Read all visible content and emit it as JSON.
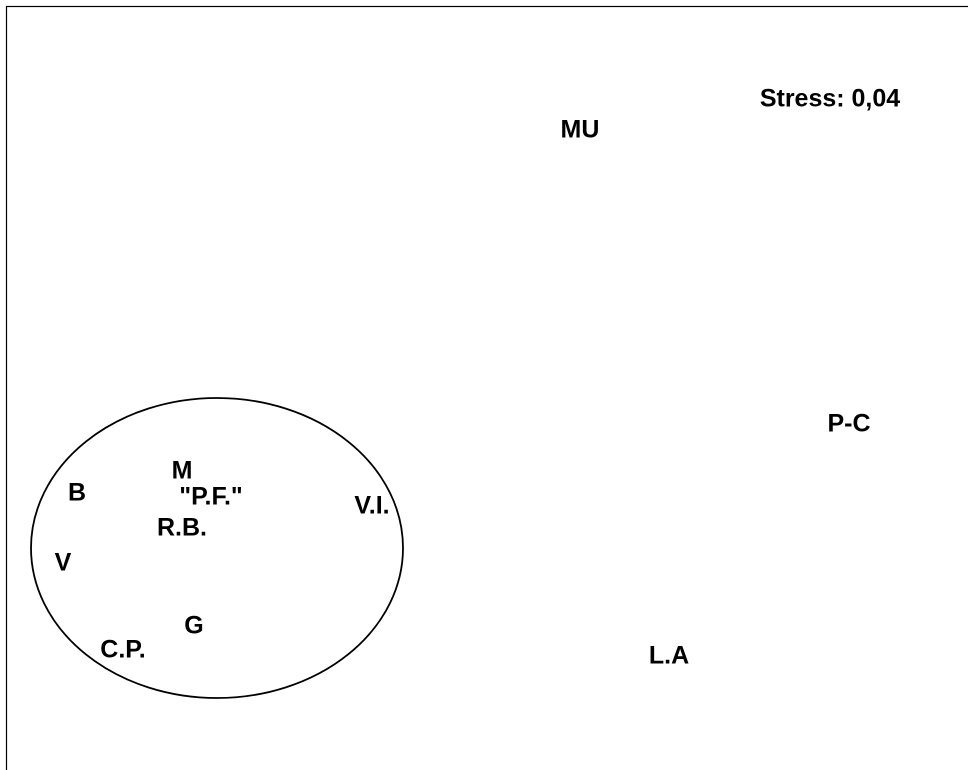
{
  "stress": "Stress: 0,04",
  "nodes": [
    {
      "label": "MU"
    },
    {
      "label": "P-C"
    },
    {
      "label": "M"
    },
    {
      "label": "\"P.F.\""
    },
    {
      "label": "B"
    },
    {
      "label": "V.I."
    },
    {
      "label": "R.B."
    },
    {
      "label": "V"
    },
    {
      "label": "G"
    },
    {
      "label": "C.P."
    },
    {
      "label": "L.A"
    }
  ]
}
